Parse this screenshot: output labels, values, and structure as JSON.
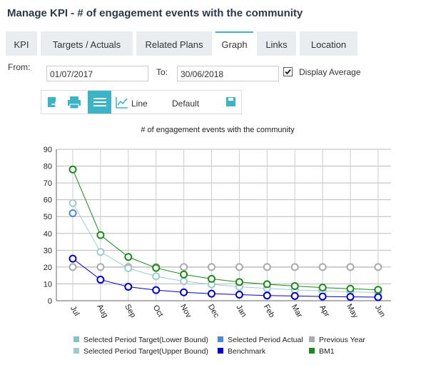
{
  "header": {
    "title": "Manage KPI - # of engagement events with the community"
  },
  "tabs": [
    "KPI",
    "Targets / Actuals",
    "Related Plans",
    "Graph",
    "Links",
    "Location"
  ],
  "active_tab": 3,
  "form": {
    "from_label": "From:",
    "from_value": "01/07/2017",
    "to_label": "To:",
    "to_value": "30/06/2018",
    "display_average": "Display Average"
  },
  "toolbar": {
    "line": "Line",
    "default": "Default"
  },
  "chart_data": {
    "type": "line",
    "title": "# of engagement events with the community",
    "categories": [
      "Jul",
      "Aug",
      "Sep",
      "Oct",
      "Nov",
      "Dec",
      "Jan",
      "Feb",
      "Mar",
      "Apr",
      "May",
      "Jun"
    ],
    "series": [
      {
        "name": "Selected Period Target(Lower Bound)",
        "color": "#7fc5c5",
        "values": [
          null,
          null,
          null,
          null,
          null,
          null,
          null,
          null,
          null,
          null,
          null,
          null
        ]
      },
      {
        "name": "Selected Period Actual",
        "color": "#4a8ad4",
        "values": [
          52,
          null,
          null,
          null,
          null,
          null,
          null,
          null,
          null,
          null,
          null,
          null
        ]
      },
      {
        "name": "Previous Year",
        "color": "#aaaaaa",
        "values": [
          20,
          20,
          20,
          20,
          20,
          20,
          20,
          20,
          20,
          20,
          20,
          20
        ]
      },
      {
        "name": "Selected Period Target(Upper Bound)",
        "color": "#9fcccc",
        "values": [
          58,
          29,
          19.3,
          14.5,
          11.6,
          9.7,
          8.3,
          7.3,
          6.4,
          5.8,
          5.3,
          4.8
        ]
      },
      {
        "name": "Benchmark",
        "color": "#0000cc",
        "values": [
          25,
          12.5,
          8.3,
          6.3,
          5,
          4.2,
          3.6,
          3.1,
          2.8,
          2.5,
          2.3,
          2.1
        ]
      },
      {
        "name": "BM1",
        "color": "#1a8a1a",
        "values": [
          78,
          39,
          26,
          19.5,
          15.6,
          13,
          11.1,
          9.8,
          8.7,
          7.8,
          7.1,
          6.5
        ]
      }
    ],
    "ylim": [
      0,
      90
    ],
    "yticks": [
      0,
      10,
      20,
      30,
      40,
      50,
      60,
      70,
      80,
      90
    ],
    "grid": true
  }
}
